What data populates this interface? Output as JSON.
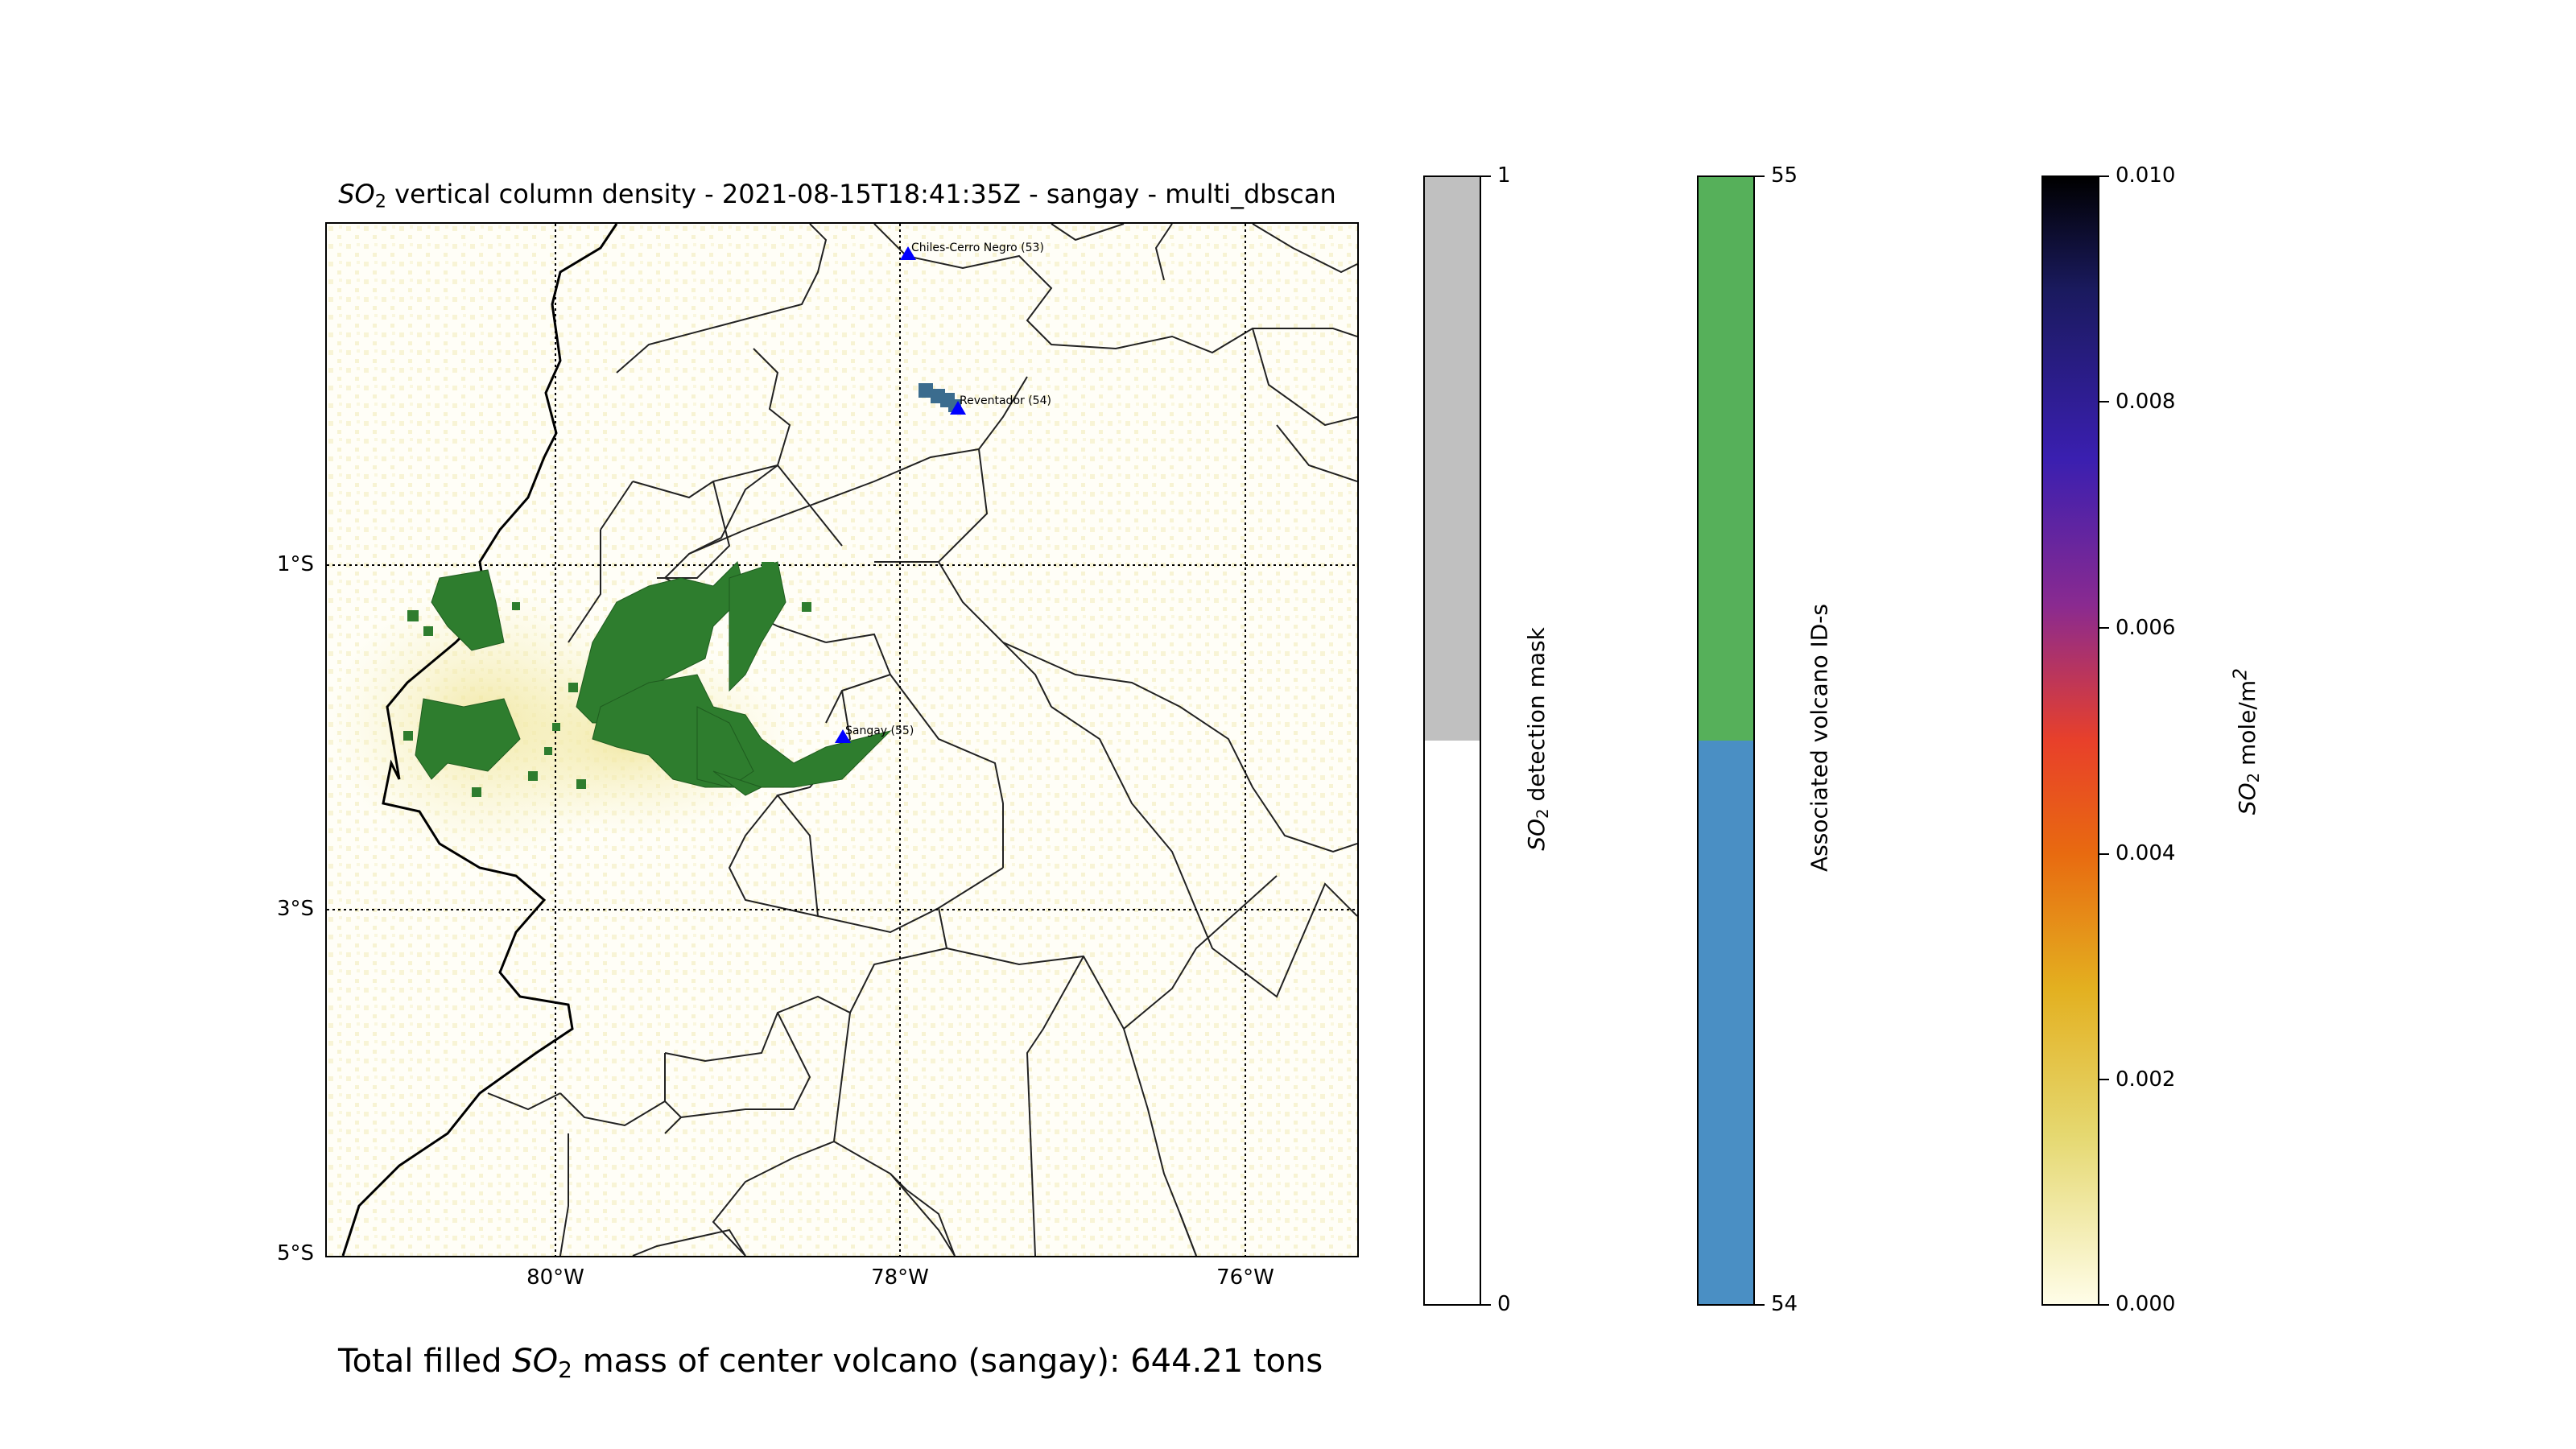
{
  "title": {
    "so2_prefix": "SO",
    "so2_sub": "2",
    "rest": " vertical column density - 2021-08-15T18:41:35Z - sangay - multi_dbscan"
  },
  "map": {
    "lat_labels": [
      "1°S",
      "3°S",
      "5°S"
    ],
    "lon_labels": [
      "80°W",
      "78°W",
      "76°W"
    ],
    "volcanoes": [
      {
        "label": "Chiles-Cerro Negro (53)"
      },
      {
        "label": "Reventador (54)"
      },
      {
        "label": "Sangay (55)"
      }
    ],
    "colors": {
      "detection_green": "#2e7d2e",
      "reventador_blue": "#3b6c8e",
      "volcano_marker": "#0000ff",
      "background_tint": "#f7f3c8"
    }
  },
  "colorbars": {
    "mask": {
      "label_prefix": "SO",
      "label_sub": "2",
      "label_rest": " detection mask",
      "ticks": [
        "1",
        "0"
      ],
      "colors": [
        "#c0c0c0",
        "#ffffff"
      ]
    },
    "volcano_ids": {
      "label": "Associated volcano ID-s",
      "ticks": [
        "55",
        "54"
      ],
      "colors": [
        "#56b05a",
        "#4a8fc4"
      ]
    },
    "so2": {
      "label_prefix": "SO",
      "label_sub": "2",
      "label_rest": " mole/m",
      "label_sup": "2",
      "ticks": [
        "0.010",
        "0.008",
        "0.006",
        "0.004",
        "0.002",
        "0.000"
      ]
    }
  },
  "footer": {
    "prefix": "Total filled ",
    "so2": "SO",
    "so2_sub": "2",
    "rest": " mass of center volcano (sangay): 644.21 tons"
  }
}
